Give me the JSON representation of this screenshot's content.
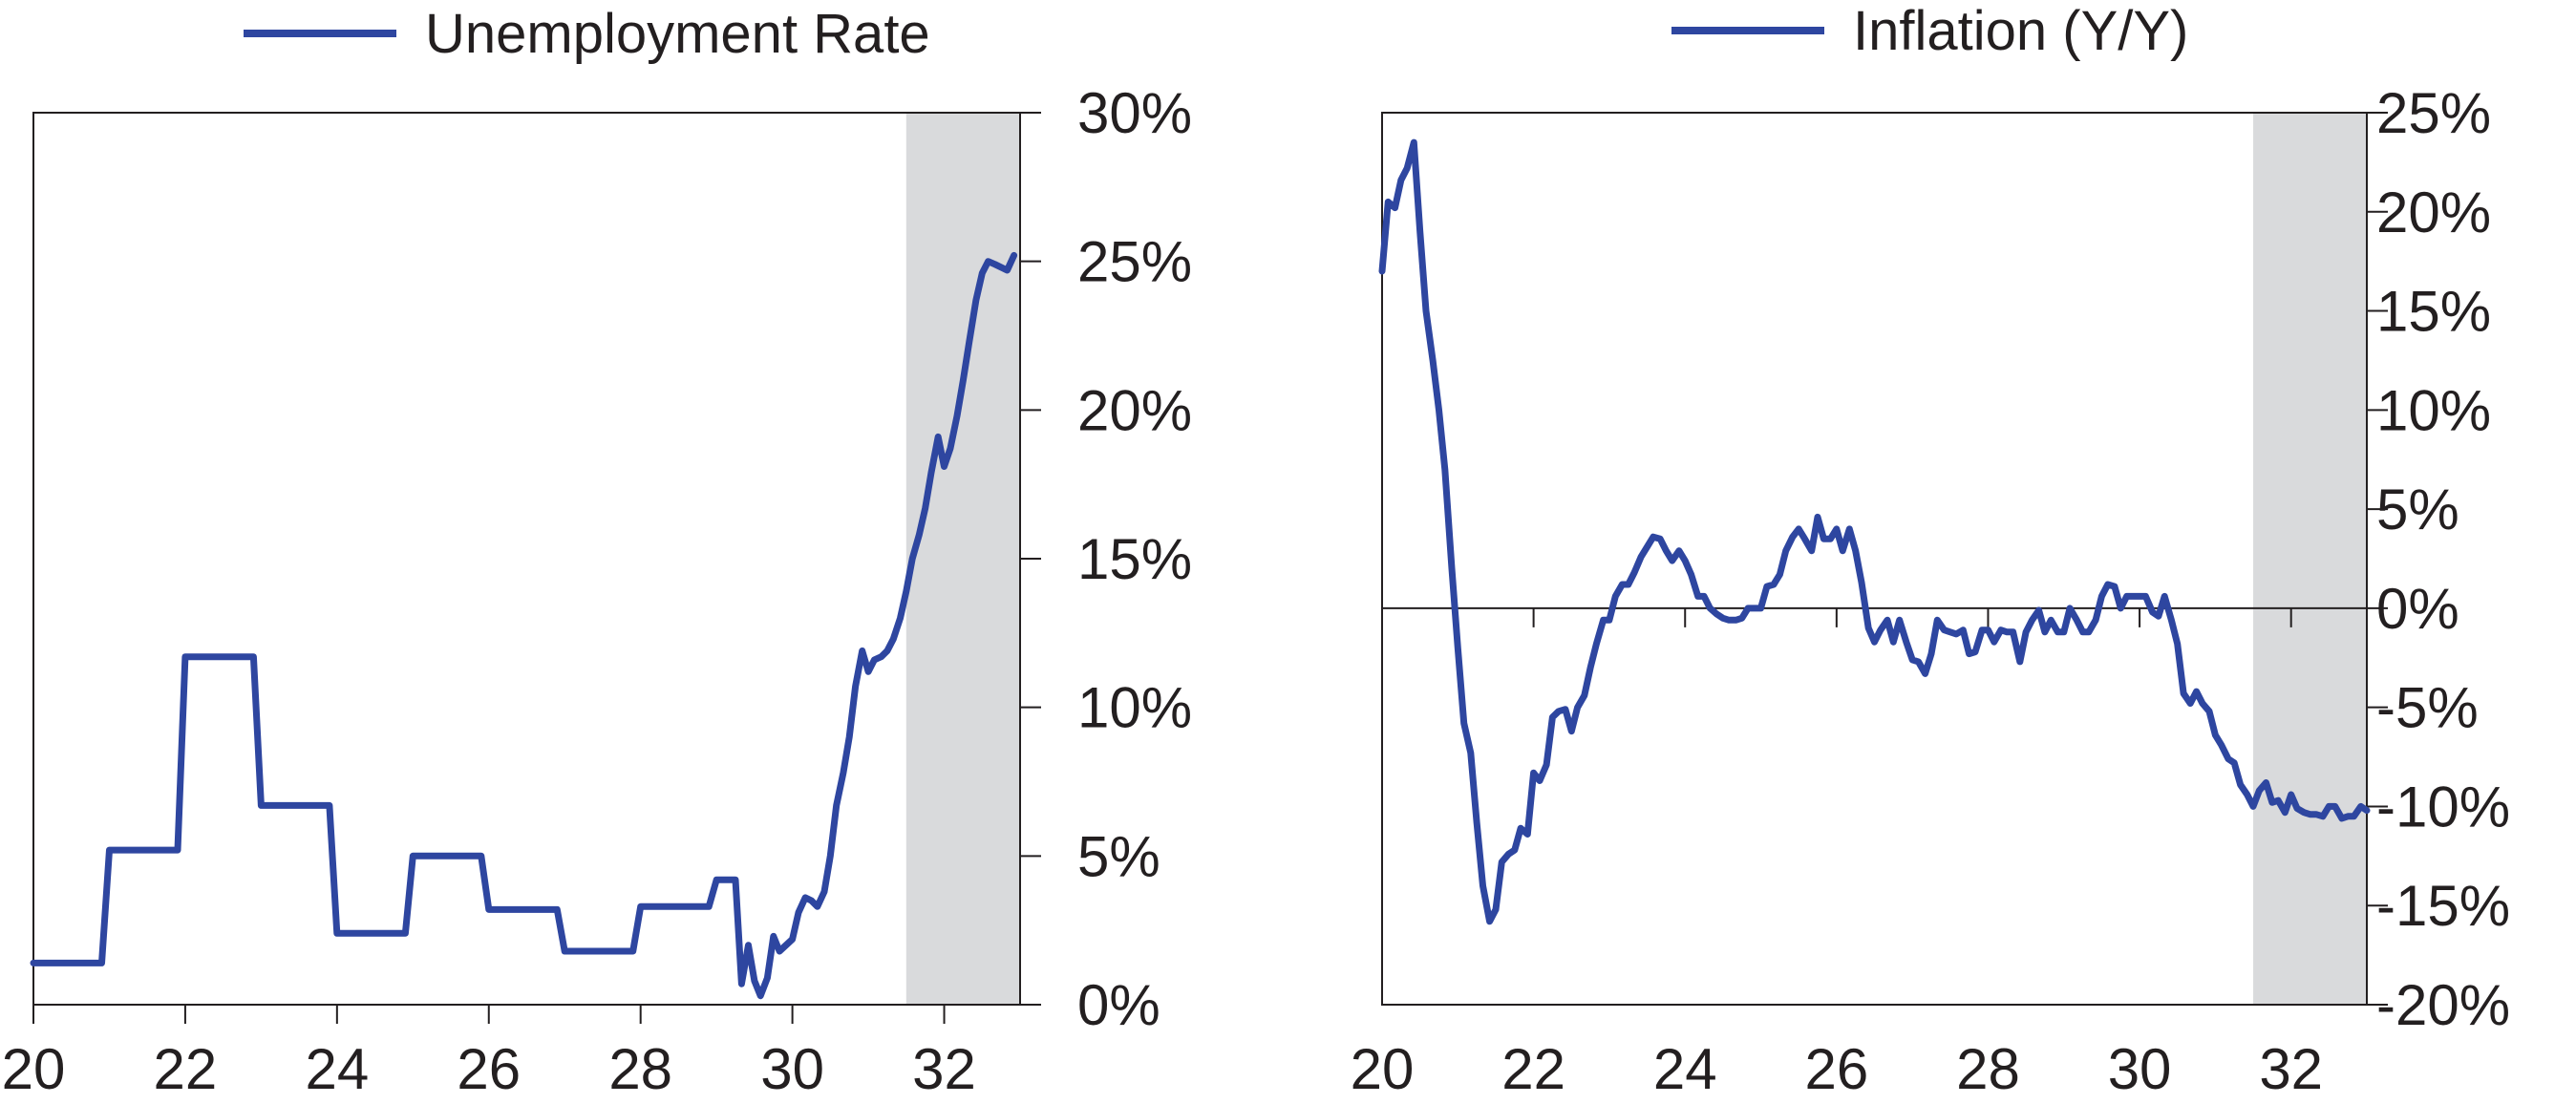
{
  "colors": {
    "line": "#2e46a0",
    "shade": "#d9dadc",
    "axis": "#231f20"
  },
  "chart_data": [
    {
      "type": "line",
      "legend": "Unemployment Rate",
      "legend_position": "top",
      "y_axis_side": "right",
      "xlim": [
        1920,
        1933
      ],
      "ylim": [
        0,
        30
      ],
      "x_ticks": [
        1920,
        1922,
        1924,
        1926,
        1928,
        1930,
        1932
      ],
      "x_tick_labels": [
        "20",
        "22",
        "24",
        "26",
        "28",
        "30",
        "32"
      ],
      "y_ticks": [
        0,
        5,
        10,
        15,
        20,
        25,
        30
      ],
      "y_tick_labels": [
        "0%",
        "5%",
        "10%",
        "15%",
        "20%",
        "25%",
        "30%"
      ],
      "shaded_region": [
        1931.5,
        1933
      ],
      "zero_line": false,
      "series": [
        {
          "points": [
            [
              1920.0,
              1.4
            ],
            [
              1920.9,
              1.4
            ],
            [
              1921.0,
              5.2
            ],
            [
              1921.9,
              5.2
            ],
            [
              1922.0,
              11.7
            ],
            [
              1922.9,
              11.7
            ],
            [
              1923.0,
              6.7
            ],
            [
              1923.9,
              6.7
            ],
            [
              1924.0,
              2.4
            ],
            [
              1924.9,
              2.4
            ],
            [
              1925.0,
              5.0
            ],
            [
              1925.9,
              5.0
            ],
            [
              1926.0,
              3.2
            ],
            [
              1926.9,
              3.2
            ],
            [
              1927.0,
              1.8
            ],
            [
              1927.9,
              1.8
            ],
            [
              1928.0,
              3.3
            ],
            [
              1928.9,
              3.3
            ],
            [
              1929.0,
              4.2
            ],
            [
              1929.25,
              4.2
            ],
            [
              1929.33,
              0.7
            ],
            [
              1929.42,
              2.0
            ],
            [
              1929.5,
              0.8
            ],
            [
              1929.58,
              0.3
            ],
            [
              1929.67,
              0.9
            ],
            [
              1929.75,
              2.3
            ],
            [
              1929.83,
              1.8
            ],
            [
              1930.0,
              2.2
            ],
            [
              1930.08,
              3.1
            ],
            [
              1930.17,
              3.6
            ],
            [
              1930.25,
              3.5
            ],
            [
              1930.33,
              3.3
            ],
            [
              1930.42,
              3.8
            ],
            [
              1930.5,
              5.0
            ],
            [
              1930.58,
              6.7
            ],
            [
              1930.67,
              7.8
            ],
            [
              1930.75,
              9.0
            ],
            [
              1930.83,
              10.7
            ],
            [
              1930.92,
              11.9
            ],
            [
              1931.0,
              11.2
            ],
            [
              1931.08,
              11.6
            ],
            [
              1931.17,
              11.7
            ],
            [
              1931.25,
              11.9
            ],
            [
              1931.33,
              12.3
            ],
            [
              1931.42,
              13.0
            ],
            [
              1931.5,
              13.9
            ],
            [
              1931.58,
              15.0
            ],
            [
              1931.67,
              15.8
            ],
            [
              1931.75,
              16.7
            ],
            [
              1931.83,
              17.9
            ],
            [
              1931.92,
              19.1
            ],
            [
              1932.0,
              18.1
            ],
            [
              1932.08,
              18.7
            ],
            [
              1932.17,
              19.8
            ],
            [
              1932.25,
              21.0
            ],
            [
              1932.33,
              22.3
            ],
            [
              1932.42,
              23.7
            ],
            [
              1932.5,
              24.6
            ],
            [
              1932.58,
              25.0
            ],
            [
              1932.67,
              24.9
            ],
            [
              1932.75,
              24.8
            ],
            [
              1932.83,
              24.7
            ],
            [
              1932.92,
              25.2
            ]
          ]
        }
      ]
    },
    {
      "type": "line",
      "legend": "Inflation (Y/Y)",
      "legend_position": "top",
      "y_axis_side": "right",
      "xlim": [
        1920,
        1933
      ],
      "ylim": [
        -20,
        25
      ],
      "x_ticks": [
        1920,
        1922,
        1924,
        1926,
        1928,
        1930,
        1932
      ],
      "x_tick_labels": [
        "20",
        "22",
        "24",
        "26",
        "28",
        "30",
        "32"
      ],
      "y_ticks": [
        -20,
        -15,
        -10,
        -5,
        0,
        5,
        10,
        15,
        20,
        25
      ],
      "y_tick_labels": [
        "-20%",
        "-15%",
        "-10%",
        "-5%",
        "0%",
        "5%",
        "10%",
        "15%",
        "20%",
        "25%"
      ],
      "shaded_region": [
        1931.5,
        1933
      ],
      "zero_line": true,
      "series": [
        {
          "points": [
            [
              1920.0,
              17.0
            ],
            [
              1920.08,
              20.5
            ],
            [
              1920.17,
              20.2
            ],
            [
              1920.25,
              21.6
            ],
            [
              1920.33,
              22.2
            ],
            [
              1920.42,
              23.5
            ],
            [
              1920.5,
              19.0
            ],
            [
              1920.58,
              15.0
            ],
            [
              1920.67,
              12.5
            ],
            [
              1920.75,
              10.0
            ],
            [
              1920.83,
              7.0
            ],
            [
              1920.92,
              2.0
            ],
            [
              1921.0,
              -2.0
            ],
            [
              1921.08,
              -5.8
            ],
            [
              1921.17,
              -7.3
            ],
            [
              1921.25,
              -10.8
            ],
            [
              1921.33,
              -14.0
            ],
            [
              1921.42,
              -15.8
            ],
            [
              1921.5,
              -15.2
            ],
            [
              1921.58,
              -12.8
            ],
            [
              1921.67,
              -12.4
            ],
            [
              1921.75,
              -12.2
            ],
            [
              1921.83,
              -11.1
            ],
            [
              1921.92,
              -11.4
            ],
            [
              1922.0,
              -8.3
            ],
            [
              1922.08,
              -8.7
            ],
            [
              1922.17,
              -7.9
            ],
            [
              1922.25,
              -5.5
            ],
            [
              1922.33,
              -5.2
            ],
            [
              1922.42,
              -5.1
            ],
            [
              1922.5,
              -6.2
            ],
            [
              1922.58,
              -5.0
            ],
            [
              1922.67,
              -4.4
            ],
            [
              1922.75,
              -3.0
            ],
            [
              1922.83,
              -1.8
            ],
            [
              1922.92,
              -0.6
            ],
            [
              1923.0,
              -0.6
            ],
            [
              1923.08,
              0.6
            ],
            [
              1923.17,
              1.2
            ],
            [
              1923.25,
              1.2
            ],
            [
              1923.33,
              1.8
            ],
            [
              1923.42,
              2.6
            ],
            [
              1923.5,
              3.1
            ],
            [
              1923.58,
              3.6
            ],
            [
              1923.67,
              3.5
            ],
            [
              1923.75,
              2.9
            ],
            [
              1923.83,
              2.4
            ],
            [
              1923.92,
              2.9
            ],
            [
              1924.0,
              2.4
            ],
            [
              1924.08,
              1.7
            ],
            [
              1924.17,
              0.6
            ],
            [
              1924.25,
              0.6
            ],
            [
              1924.33,
              0.0
            ],
            [
              1924.42,
              -0.3
            ],
            [
              1924.5,
              -0.5
            ],
            [
              1924.58,
              -0.6
            ],
            [
              1924.67,
              -0.6
            ],
            [
              1924.75,
              -0.5
            ],
            [
              1924.83,
              0.0
            ],
            [
              1924.92,
              0.0
            ],
            [
              1925.0,
              0.0
            ],
            [
              1925.08,
              1.1
            ],
            [
              1925.17,
              1.2
            ],
            [
              1925.25,
              1.7
            ],
            [
              1925.33,
              2.9
            ],
            [
              1925.42,
              3.6
            ],
            [
              1925.5,
              4.0
            ],
            [
              1925.58,
              3.5
            ],
            [
              1925.67,
              2.9
            ],
            [
              1925.75,
              4.6
            ],
            [
              1925.83,
              3.5
            ],
            [
              1925.92,
              3.5
            ],
            [
              1926.0,
              4.0
            ],
            [
              1926.08,
              2.9
            ],
            [
              1926.17,
              4.0
            ],
            [
              1926.25,
              2.9
            ],
            [
              1926.33,
              1.3
            ],
            [
              1926.42,
              -1.0
            ],
            [
              1926.5,
              -1.7
            ],
            [
              1926.58,
              -1.1
            ],
            [
              1926.67,
              -0.6
            ],
            [
              1926.75,
              -1.7
            ],
            [
              1926.83,
              -0.6
            ],
            [
              1926.92,
              -1.7
            ],
            [
              1927.0,
              -2.6
            ],
            [
              1927.08,
              -2.7
            ],
            [
              1927.17,
              -3.3
            ],
            [
              1927.25,
              -2.3
            ],
            [
              1927.33,
              -0.6
            ],
            [
              1927.42,
              -1.1
            ],
            [
              1927.5,
              -1.2
            ],
            [
              1927.58,
              -1.3
            ],
            [
              1927.67,
              -1.1
            ],
            [
              1927.75,
              -2.3
            ],
            [
              1927.83,
              -2.2
            ],
            [
              1927.92,
              -1.1
            ],
            [
              1928.0,
              -1.1
            ],
            [
              1928.08,
              -1.7
            ],
            [
              1928.17,
              -1.1
            ],
            [
              1928.25,
              -1.2
            ],
            [
              1928.33,
              -1.2
            ],
            [
              1928.42,
              -2.7
            ],
            [
              1928.5,
              -1.2
            ],
            [
              1928.58,
              -0.6
            ],
            [
              1928.67,
              -0.1
            ],
            [
              1928.75,
              -1.2
            ],
            [
              1928.83,
              -0.6
            ],
            [
              1928.92,
              -1.2
            ],
            [
              1929.0,
              -1.2
            ],
            [
              1929.08,
              0.0
            ],
            [
              1929.17,
              -0.6
            ],
            [
              1929.25,
              -1.2
            ],
            [
              1929.33,
              -1.2
            ],
            [
              1929.42,
              -0.6
            ],
            [
              1929.5,
              0.6
            ],
            [
              1929.58,
              1.2
            ],
            [
              1929.67,
              1.1
            ],
            [
              1929.75,
              0.0
            ],
            [
              1929.83,
              0.6
            ],
            [
              1929.92,
              0.6
            ],
            [
              1930.0,
              0.6
            ],
            [
              1930.08,
              0.6
            ],
            [
              1930.17,
              -0.2
            ],
            [
              1930.25,
              -0.4
            ],
            [
              1930.33,
              0.6
            ],
            [
              1930.42,
              -0.6
            ],
            [
              1930.5,
              -1.8
            ],
            [
              1930.58,
              -4.3
            ],
            [
              1930.67,
              -4.8
            ],
            [
              1930.75,
              -4.2
            ],
            [
              1930.83,
              -4.8
            ],
            [
              1930.92,
              -5.2
            ],
            [
              1931.0,
              -6.4
            ],
            [
              1931.08,
              -6.9
            ],
            [
              1931.17,
              -7.6
            ],
            [
              1931.25,
              -7.8
            ],
            [
              1931.33,
              -8.9
            ],
            [
              1931.42,
              -9.4
            ],
            [
              1931.5,
              -10.0
            ],
            [
              1931.58,
              -9.2
            ],
            [
              1931.67,
              -8.8
            ],
            [
              1931.75,
              -9.8
            ],
            [
              1931.83,
              -9.7
            ],
            [
              1931.92,
              -10.3
            ],
            [
              1932.0,
              -9.4
            ],
            [
              1932.08,
              -10.1
            ],
            [
              1932.17,
              -10.3
            ],
            [
              1932.25,
              -10.4
            ],
            [
              1932.33,
              -10.4
            ],
            [
              1932.42,
              -10.5
            ],
            [
              1932.5,
              -10.0
            ],
            [
              1932.58,
              -10.0
            ],
            [
              1932.67,
              -10.6
            ],
            [
              1932.75,
              -10.5
            ],
            [
              1932.83,
              -10.5
            ],
            [
              1932.92,
              -10.0
            ],
            [
              1933.0,
              -10.2
            ]
          ]
        }
      ]
    }
  ]
}
